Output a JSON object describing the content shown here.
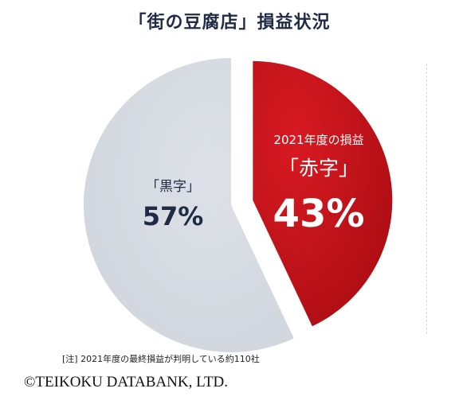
{
  "chart_data": {
    "type": "pie",
    "title": "「街の豆腐店」損益状況",
    "slices": [
      {
        "key": "deficit",
        "label": "「赤字」",
        "header": "2021年度の損益",
        "value": 43,
        "display": "43%",
        "color": "#c8141c"
      },
      {
        "key": "surplus",
        "label": "「黒字」",
        "value": 57,
        "display": "57%",
        "color": "#d6dbe3"
      }
    ]
  },
  "note": "[注] 2021年度の最終損益が判明している約110社",
  "copyright": "©TEIKOKU DATABANK, LTD.",
  "colors": {
    "title": "#1f2a44",
    "deficit": "#c8141c",
    "surplus": "#d6dbe3",
    "surplus_text": "#1f2a44"
  }
}
